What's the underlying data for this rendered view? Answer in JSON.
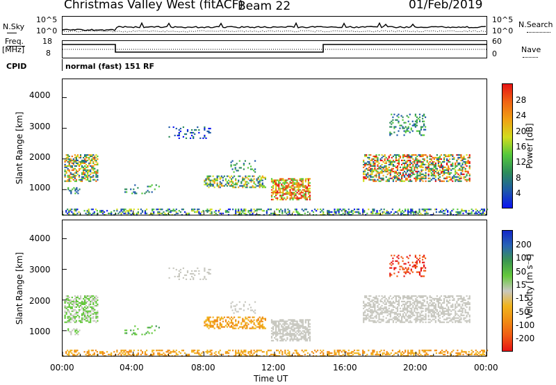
{
  "header": {
    "station": "Christmas Valley West (fitACF)",
    "beam": "Beam 22",
    "date": "01/Feb/2019"
  },
  "side_labels": {
    "nsky": "N.Sky",
    "nsearch": "N.Search",
    "freq": "Freq.",
    "freq_unit": "[MHz]",
    "nave": "Nave",
    "cpid": "CPID",
    "cpid_value": "normal (fast) 151 RF"
  },
  "noise_ticks": {
    "left_top": "10^5",
    "left_bottom": "10^0",
    "right_top": "10^5",
    "right_bottom": "10^0"
  },
  "freq_ticks": {
    "left_top": "18",
    "left_bottom": "8",
    "right_top": "60",
    "right_bottom": "0"
  },
  "colors": {
    "power": [
      "#0a14f0",
      "#1e5aa8",
      "#2d8c5a",
      "#55c83c",
      "#d2dc1e",
      "#f0a014",
      "#f06414",
      "#e61414"
    ],
    "velocity": [
      "#1428c8",
      "#2864b4",
      "#3c9650",
      "#64c83c",
      "#c8c8c0",
      "#f0b41e",
      "#f08c14",
      "#f05a14",
      "#e61414"
    ]
  },
  "chart_data": [
    {
      "type": "heatmap",
      "title": "Power",
      "ylabel": "Slant Range [km]",
      "xlabel": "Time UT",
      "ylim": [
        180,
        4600
      ],
      "yticks": [
        "1000",
        "2000",
        "3000",
        "4000"
      ],
      "colorbar_label": "Power [dB]",
      "colorbar_ticks": [
        "4",
        "8",
        "12",
        "16",
        "20",
        "24",
        "28"
      ],
      "colorbar_range": [
        0,
        32
      ]
    },
    {
      "type": "heatmap",
      "title": "Velocity",
      "ylabel": "Slant Range [km]",
      "xlabel": "Time UT",
      "ylim": [
        180,
        4600
      ],
      "yticks": [
        "1000",
        "2000",
        "3000",
        "4000"
      ],
      "colorbar_label": "Velocity [m s⁻¹]",
      "colorbar_ticks": [
        "200",
        "100",
        "50",
        "15",
        "-15",
        "-50",
        "-100",
        "-200"
      ]
    }
  ],
  "xaxis": {
    "ticks": [
      "00:00",
      "04:00",
      "08:00",
      "12:00",
      "16:00",
      "20:00",
      "00:00"
    ],
    "label": "Time UT"
  }
}
